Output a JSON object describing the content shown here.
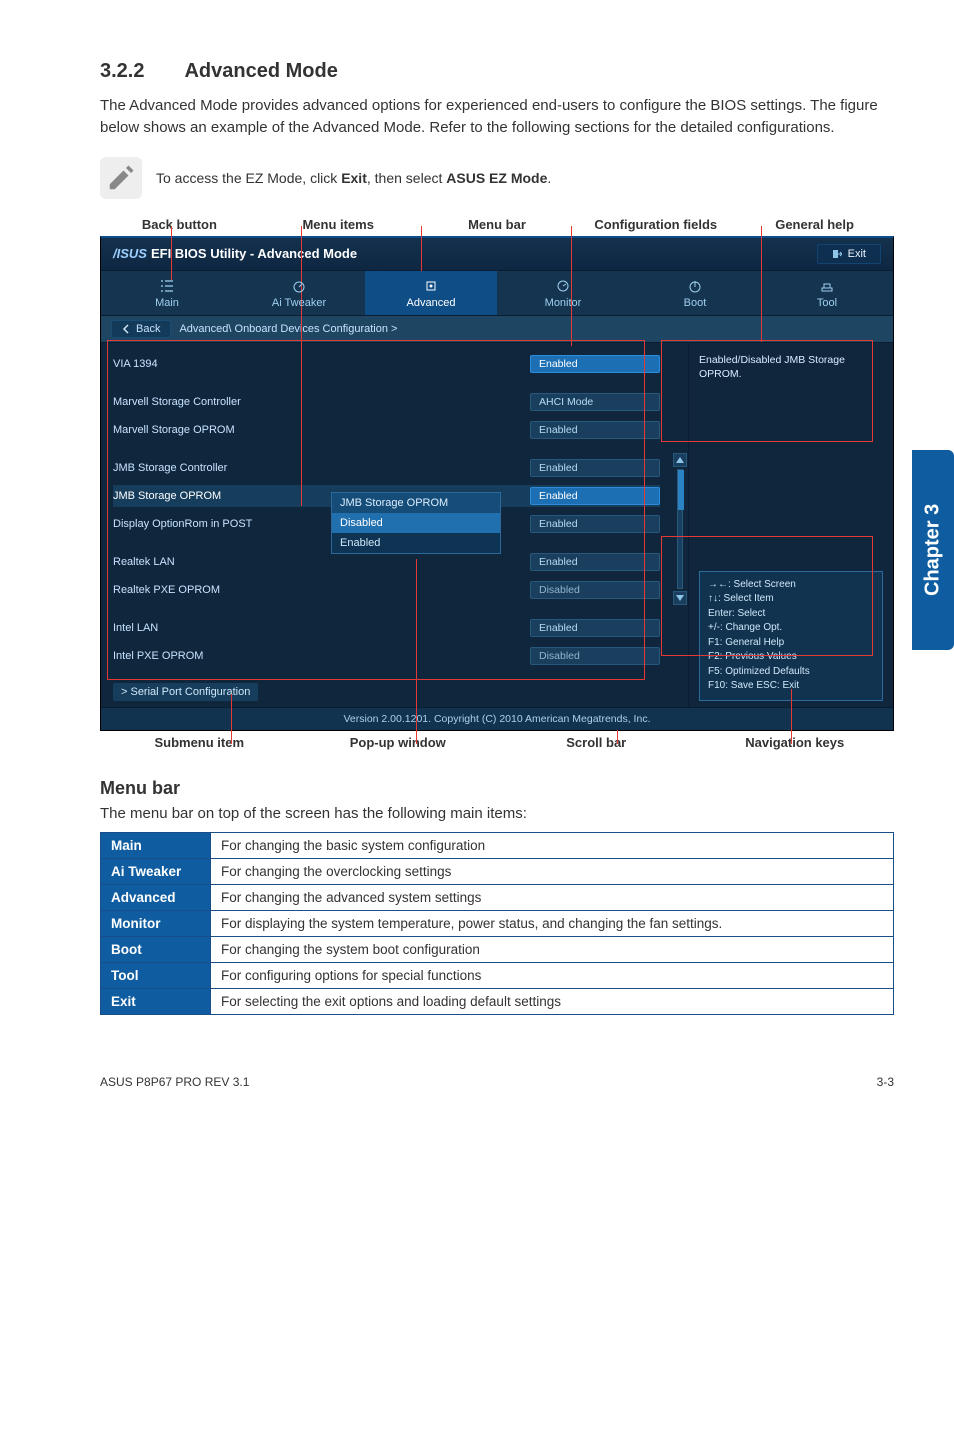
{
  "section": {
    "num": "3.2.2",
    "title": "Advanced Mode"
  },
  "intro": "The Advanced Mode provides advanced options for experienced end-users to configure the BIOS settings. The figure below shows an example of the Advanced Mode. Refer to the following sections for the detailed configurations.",
  "note": {
    "prefix": "To access the EZ Mode, click ",
    "b1": "Exit",
    "mid": ", then select ",
    "b2": "ASUS EZ Mode",
    "suffix": "."
  },
  "labels_top": [
    "Back button",
    "Menu items",
    "Menu bar",
    "Configuration fields",
    "General help"
  ],
  "labels_btm": [
    "Submenu item",
    "Pop-up window",
    "Scroll bar",
    "Navigation keys"
  ],
  "bios": {
    "brand_text": "EFI BIOS Utility - Advanced Mode",
    "exit": "Exit",
    "tabs": [
      {
        "label": "Main",
        "icon": "list"
      },
      {
        "label": "Ai Tweaker",
        "icon": "gauge"
      },
      {
        "label": "Advanced",
        "icon": "chip",
        "active": true
      },
      {
        "label": "Monitor",
        "icon": "monitor"
      },
      {
        "label": "Boot",
        "icon": "power"
      },
      {
        "label": "Tool",
        "icon": "tool"
      }
    ],
    "back": "Back",
    "breadcrumb": "Advanced\\ Onboard Devices Configuration >",
    "rows": [
      {
        "label": "VIA 1394",
        "value": "Enabled",
        "cls": "on"
      },
      {
        "spacer": true
      },
      {
        "label": "Marvell Storage Controller",
        "value": "AHCI Mode"
      },
      {
        "label": "Marvell Storage OPROM",
        "value": "Enabled"
      },
      {
        "spacer": true
      },
      {
        "label": "JMB Storage Controller",
        "value": "Enabled"
      },
      {
        "label": "JMB Storage OPROM",
        "value": "Enabled",
        "active": true,
        "cls": "on"
      },
      {
        "label": "Display OptionRom in POST",
        "value": "Enabled"
      },
      {
        "spacer": true
      },
      {
        "label": "Realtek LAN",
        "value": "Enabled"
      },
      {
        "label": "Realtek PXE OPROM",
        "value": "Disabled",
        "cls": "disabled"
      },
      {
        "spacer": true
      },
      {
        "label": "Intel LAN",
        "value": "Enabled"
      },
      {
        "label": "Intel PXE OPROM",
        "value": "Disabled",
        "cls": "disabled"
      },
      {
        "spacer": true
      },
      {
        "sub": "> Serial Port Configuration"
      }
    ],
    "popup": {
      "title": "JMB Storage OPROM",
      "opts": [
        "Disabled",
        "Enabled"
      ],
      "sel": 0
    },
    "help": "Enabled/Disabled JMB Storage OPROM.",
    "nav": [
      "→←: Select Screen",
      "↑↓: Select Item",
      "Enter: Select",
      "+/-: Change Opt.",
      "F1: General Help",
      "F2: Previous Values",
      "F5: Optimized Defaults",
      "F10: Save   ESC: Exit"
    ],
    "footer": "Version 2.00.1201. Copyright (C) 2010 American Megatrends, Inc."
  },
  "side_tab": "Chapter 3",
  "menu_bar_title": "Menu bar",
  "menu_bar_desc": "The menu bar on top of the screen has the following main items:",
  "menu_table": [
    {
      "h": "Main",
      "d": "For changing the basic system configuration"
    },
    {
      "h": "Ai Tweaker",
      "d": "For changing the overclocking settings"
    },
    {
      "h": "Advanced",
      "d": "For changing the advanced system settings"
    },
    {
      "h": "Monitor",
      "d": "For displaying the system temperature, power status, and changing the fan settings."
    },
    {
      "h": "Boot",
      "d": "For changing the system boot configuration"
    },
    {
      "h": "Tool",
      "d": "For configuring options for special functions"
    },
    {
      "h": "Exit",
      "d": "For selecting the exit options and loading default settings"
    }
  ],
  "footer": {
    "left": "ASUS P8P67 PRO REV 3.1",
    "right": "3-3"
  },
  "accent": "#0f5da0",
  "redline": "#e53935"
}
